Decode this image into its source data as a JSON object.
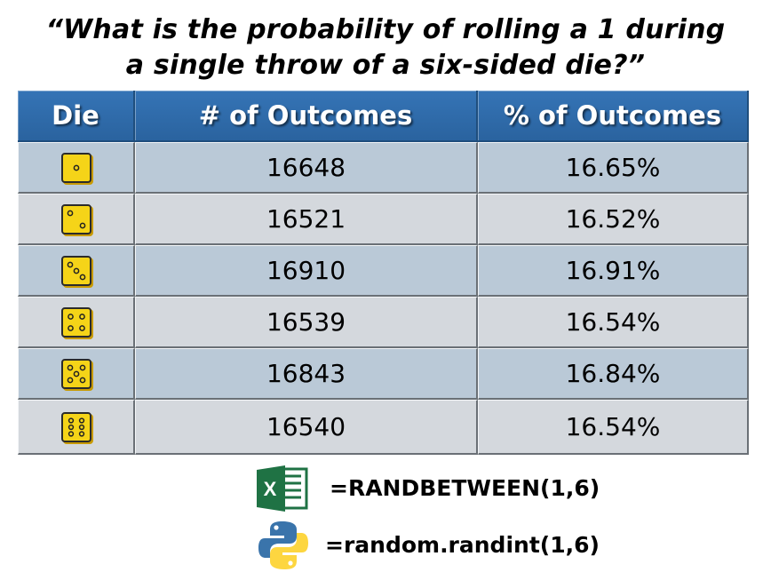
{
  "title": {
    "line1": "“What is the probability of rolling a 1 during",
    "line2": "a single throw of a six-sided die?”"
  },
  "table": {
    "headers": [
      "Die",
      "# of Outcomes",
      "% of Outcomes"
    ],
    "rows": [
      {
        "die": "die-face-1-icon",
        "outcomes": "16648",
        "percent": "16.65%"
      },
      {
        "die": "die-face-2-icon",
        "outcomes": "16521",
        "percent": "16.52%"
      },
      {
        "die": "die-face-3-icon",
        "outcomes": "16910",
        "percent": "16.91%"
      },
      {
        "die": "die-face-4-icon",
        "outcomes": "16539",
        "percent": "16.54%"
      },
      {
        "die": "die-face-5-icon",
        "outcomes": "16843",
        "percent": "16.84%"
      },
      {
        "die": "die-face-6-icon",
        "outcomes": "16540",
        "percent": "16.54%"
      }
    ]
  },
  "formulas": {
    "excel": {
      "icon": "excel-logo-icon",
      "logo_letter": "X",
      "text": "=RANDBETWEEN(1,6)"
    },
    "python": {
      "icon": "python-logo-icon",
      "text": "=random.randint(1,6)"
    }
  },
  "colors": {
    "header": "#2e6aa8",
    "row_a": "#bac9d7",
    "row_b": "#d4d8dd",
    "die": "#f5d418",
    "excel_green": "#1f7244",
    "python_blue": "#3a74ab",
    "python_yellow": "#fdd640"
  }
}
